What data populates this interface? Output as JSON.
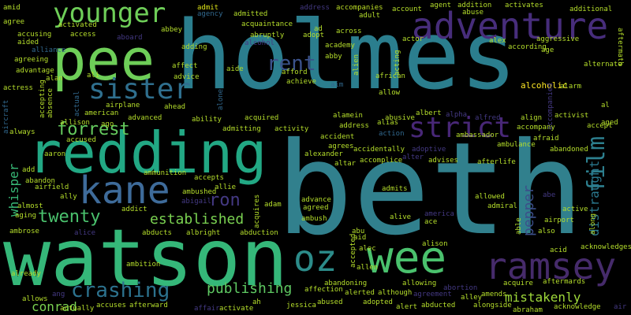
{
  "words": {
    "holmes": "holmes",
    "beth": "beth",
    "watson": "watson",
    "redding": "redding",
    "pee": "pee",
    "wee": "wee",
    "oz": "oz",
    "kane": "kane",
    "ramsey": "ramsey",
    "younger": "younger",
    "adventure": "adventure",
    "sister": "sister",
    "strict": "strict",
    "rent": "rent",
    "film": "film",
    "forrest": "forrest",
    "twenty": "twenty",
    "established": "established",
    "crashing": "crashing",
    "ron": "ron",
    "publishing": "publishing",
    "mistakenly": "mistakenly",
    "conrad": "conrad",
    "whisper": "whisper",
    "pepper": "pepper",
    "distraught": "distraught",
    "alcoholic": "alcoholic",
    "amid": "amid",
    "admit": "admit",
    "address": "address",
    "accompanies": "accompanies",
    "agent": "agent",
    "addition": "addition",
    "activates": "activates",
    "additional": "additional",
    "adult": "adult",
    "agree": "agree",
    "activated": "activated",
    "abbey": "abbey",
    "agency": "agency",
    "admitted": "admitted",
    "account": "account",
    "abuse": "abuse",
    "alex": "alex",
    "aggressive": "aggressive",
    "accusing": "accusing",
    "access": "access",
    "aboard": "aboard",
    "acquaintance": "acquaintance",
    "ad": "ad",
    "across": "across",
    "actor": "actor",
    "according": "according",
    "aftermath": "aftermath",
    "aided": "aided",
    "alliance": "alliance",
    "abruptly": "abruptly",
    "adopt": "adopt",
    "academy": "academy",
    "age": "age",
    "alcohol": "alcohol",
    "agreeing": "agreeing",
    "adding": "adding",
    "abby": "abby",
    "acting": "acting",
    "alternate": "alternate",
    "advantage": "advantage",
    "ali": "ali",
    "affect": "affect",
    "aide": "aide",
    "afford": "afford",
    "alan": "alan",
    "advice": "advice",
    "achieve": "achieve",
    "african": "african",
    "alien": "alien",
    "alarm": "alarm",
    "actress": "actress",
    "allow": "allow",
    "accepting": "accepting",
    "absence": "absence",
    "actual": "actual",
    "airplane": "airplane",
    "aim": "aim",
    "ahead": "ahead",
    "alone": "alone",
    "albert": "albert",
    "alpha": "alpha",
    "accompanied": "accompanied",
    "al": "al",
    "american": "american",
    "advanced": "advanced",
    "acquired": "acquired",
    "abusive": "abusive",
    "alfred": "alfred",
    "align": "align",
    "activist": "activist",
    "aircraft": "aircraft",
    "allison": "allison",
    "ago": "ago",
    "ability": "ability",
    "admitting": "admitting",
    "activity": "activity",
    "alamein": "alamein",
    "alias": "alias",
    "accompany": "accompany",
    "accept": "accept",
    "aged": "aged",
    "always": "always",
    "action": "action",
    "afraid": "afraid",
    "accused": "accused",
    "aaron": "aaron",
    "agrees": "agrees",
    "accident": "accident",
    "ambassador": "ambassador",
    "ambulance": "ambulance",
    "abandoned": "abandoned",
    "accidentally": "accidentally",
    "adoptive": "adoptive",
    "alexander": "alexander",
    "advises": "advises",
    "afterlife": "afterlife",
    "add": "add",
    "altar": "altar",
    "accomplice": "accomplice",
    "alter": "alter",
    "ammunition": "ammunition",
    "abandon": "abandon",
    "accepts": "accepts",
    "allie": "allie",
    "airfield": "airfield",
    "ally": "ally",
    "abigail": "abigail",
    "admits": "admits",
    "allowed": "allowed",
    "abe": "abe",
    "almost": "almost",
    "ambushed": "ambushed",
    "adam": "adam",
    "advance": "advance",
    "admiral": "admiral",
    "active": "active",
    "aging": "aging",
    "addict": "addict",
    "acquires": "acquires",
    "agreed": "agreed",
    "america": "america",
    "airport": "airport",
    "along": "along",
    "ambush": "ambush",
    "alive": "alive",
    "ace": "ace",
    "able": "able",
    "ambrose": "ambrose",
    "alice": "alice",
    "abducts": "abducts",
    "albright": "albright",
    "abduction": "abduction",
    "abu": "abu",
    "aid": "aid",
    "also": "also",
    "acknowledges": "acknowledges",
    "alison": "alison",
    "accepted": "accepted",
    "alec": "alec",
    "acid": "acid",
    "ambition": "ambition",
    "allen": "allen",
    "already": "already",
    "abandoning": "abandoning",
    "allowing": "allowing",
    "abortion": "abortion",
    "acquire": "acquire",
    "aftermards": "aftermards",
    "allows": "allows",
    "affection": "affection",
    "alerted": "alerted",
    "although": "although",
    "agreement": "agreement",
    "amends": "amends",
    "alley": "alley",
    "ang": "ang",
    "accuses": "accuses",
    "afterward": "afterward",
    "ah": "ah",
    "abused": "abused",
    "alert": "alert",
    "abducted": "abducted",
    "actually": "actually",
    "affair": "affair",
    "activate": "activate",
    "jessica": "jessica",
    "adopted": "adopted",
    "alongside": "alongside",
    "abraham": "abraham",
    "acknowledge": "acknowledge",
    "air": "air"
  },
  "colors": {
    "teal": "#2a7f8e",
    "green": "#35b779",
    "lime": "#7ad151",
    "yellowgreen": "#b5de2b",
    "blue": "#3e4a89",
    "purple": "#481f70",
    "darkpurple": "#44015a",
    "steel": "#31688e",
    "mint": "#4ac16d"
  }
}
